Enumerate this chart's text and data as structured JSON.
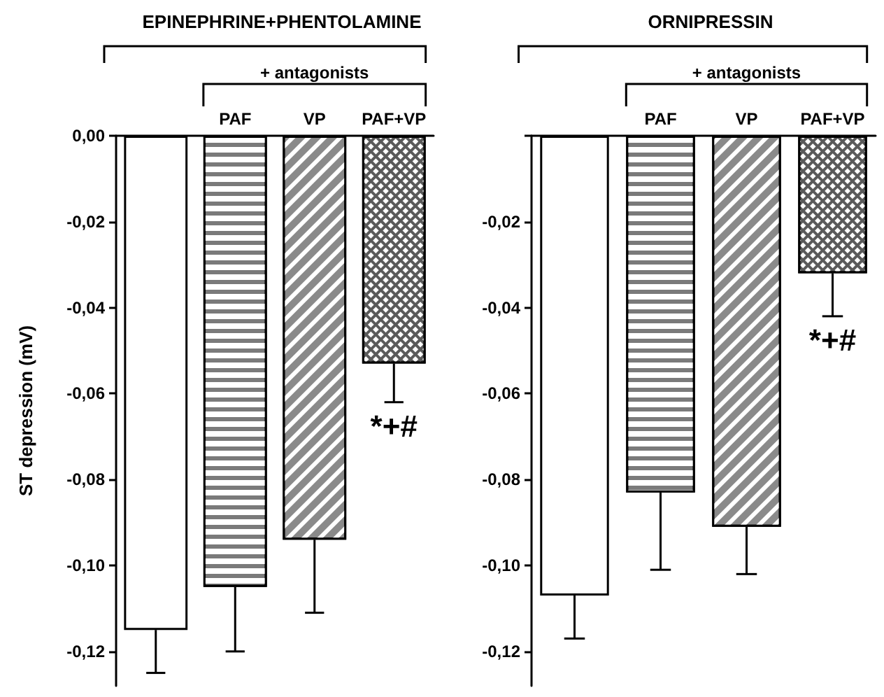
{
  "chart_data": [
    {
      "type": "bar",
      "title": "EPINEPHRINE+PHENTOLAMINE",
      "ylabel": "ST depression (mV)",
      "categories": [
        null,
        "PAF",
        "VP",
        "PAF+VP"
      ],
      "values": [
        -0.115,
        -0.105,
        -0.094,
        -0.053
      ],
      "colors": [
        "#ffffff",
        "#7a7a7a",
        "#8a8a8a",
        "#5a5a5a"
      ],
      "errors": [
        [
          -0.125,
          -0.115
        ],
        [
          -0.12,
          -0.105
        ],
        [
          -0.111,
          -0.094
        ],
        [
          -0.062,
          -0.053
        ]
      ],
      "ylim": [
        -0.128,
        0
      ],
      "yticks": [
        {
          "value": 0,
          "label": "0,00"
        },
        {
          "value": -0.02,
          "label": "-0,02"
        },
        {
          "value": -0.04,
          "label": "-0,04"
        },
        {
          "value": -0.06,
          "label": "-0,06"
        },
        {
          "value": -0.08,
          "label": "-0,08"
        },
        {
          "value": -0.1,
          "label": "-0,10"
        },
        {
          "value": -0.12,
          "label": "-0,12"
        }
      ],
      "annotations": [
        "+ antagonists",
        {
          "text": "*+#",
          "x": "PAF+VP",
          "y": -0.062
        }
      ]
    },
    {
      "type": "bar",
      "title": "ORNIPRESSIN",
      "categories": [
        null,
        "PAF",
        "VP",
        "PAF+VP"
      ],
      "values": [
        -0.107,
        -0.083,
        -0.091,
        -0.032
      ],
      "colors": [
        "#ffffff",
        "#7a7a7a",
        "#8a8a8a",
        "#5a5a5a"
      ],
      "errors": [
        [
          -0.117,
          -0.107
        ],
        [
          -0.101,
          -0.083
        ],
        [
          -0.102,
          -0.091
        ],
        [
          -0.042,
          -0.032
        ]
      ],
      "ylim": [
        -0.128,
        0
      ],
      "yticks": [
        {
          "value": 0,
          "label": null
        },
        {
          "value": -0.02,
          "label": "-0,02"
        },
        {
          "value": -0.04,
          "label": "-0,04"
        },
        {
          "value": -0.06,
          "label": "-0,06"
        },
        {
          "value": -0.08,
          "label": "-0,08"
        },
        {
          "value": -0.1,
          "label": "-0,10"
        },
        {
          "value": -0.12,
          "label": "-0,12"
        }
      ],
      "annotations": [
        "+ antagonists",
        {
          "text": "*+#",
          "x": "PAF+VP",
          "y": -0.042
        }
      ]
    }
  ]
}
